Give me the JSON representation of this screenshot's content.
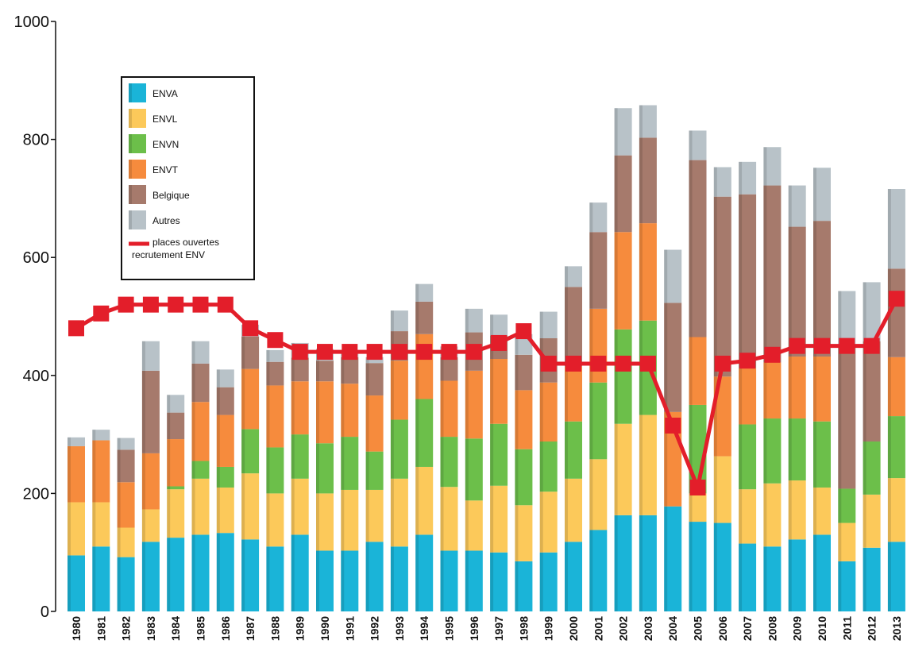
{
  "colors": {
    "ENVA": "#1ab4d8",
    "ENVL": "#fcc95a",
    "ENVN": "#6cbf4a",
    "ENVT": "#f68b3d",
    "Belgique": "#a67a6c",
    "Autres": "#b8c2c8",
    "line": "#e31e2a"
  },
  "chart_data": {
    "type": "bar",
    "stacked": true,
    "title": "",
    "xlabel": "",
    "ylabel": "",
    "ylim": [
      0,
      1000
    ],
    "yticks": [
      0,
      200,
      400,
      600,
      800,
      1000
    ],
    "grid": false,
    "legend_position": "top-left",
    "categories": [
      "1980",
      "1981",
      "1982",
      "1983",
      "1984",
      "1985",
      "1986",
      "1987",
      "1988",
      "1989",
      "1990",
      "1991",
      "1992",
      "1993",
      "1994",
      "1995",
      "1996",
      "1997",
      "1998",
      "1999",
      "2000",
      "2001",
      "2002",
      "2003",
      "2004",
      "2005",
      "2006",
      "2007",
      "2008",
      "2009",
      "2010",
      "2011",
      "2012",
      "2013"
    ],
    "series": [
      {
        "name": "ENVA",
        "values": [
          95,
          110,
          92,
          118,
          125,
          130,
          133,
          122,
          110,
          130,
          103,
          103,
          118,
          110,
          130,
          103,
          103,
          100,
          85,
          100,
          118,
          138,
          163,
          163,
          178,
          152,
          150,
          115,
          110,
          122,
          130,
          85,
          108,
          118
        ]
      },
      {
        "name": "ENVL",
        "values": [
          90,
          75,
          50,
          55,
          82,
          95,
          77,
          112,
          90,
          95,
          97,
          103,
          88,
          115,
          115,
          108,
          85,
          113,
          95,
          103,
          107,
          120,
          155,
          170,
          0,
          48,
          113,
          92,
          107,
          100,
          80,
          65,
          90,
          108
        ]
      },
      {
        "name": "ENVN",
        "values": [
          0,
          0,
          0,
          0,
          5,
          30,
          35,
          75,
          78,
          75,
          85,
          90,
          65,
          100,
          115,
          85,
          105,
          105,
          95,
          85,
          97,
          130,
          160,
          160,
          0,
          150,
          0,
          110,
          110,
          105,
          112,
          58,
          90,
          105
        ]
      },
      {
        "name": "ENVT",
        "values": [
          95,
          105,
          77,
          95,
          80,
          100,
          88,
          102,
          105,
          90,
          105,
          90,
          95,
          100,
          110,
          95,
          115,
          110,
          100,
          100,
          93,
          125,
          165,
          165,
          160,
          115,
          135,
          95,
          95,
          105,
          110,
          0,
          0,
          100
        ]
      },
      {
        "name": "Belgique",
        "values": [
          0,
          0,
          55,
          140,
          45,
          65,
          47,
          55,
          40,
          40,
          35,
          45,
          55,
          50,
          55,
          40,
          65,
          40,
          60,
          75,
          135,
          130,
          130,
          145,
          185,
          300,
          305,
          295,
          300,
          220,
          230,
          240,
          170,
          150
        ]
      },
      {
        "name": "Autres",
        "values": [
          15,
          18,
          20,
          50,
          30,
          38,
          30,
          20,
          20,
          25,
          20,
          10,
          10,
          35,
          30,
          18,
          40,
          35,
          35,
          45,
          35,
          50,
          80,
          55,
          90,
          50,
          50,
          55,
          65,
          70,
          90,
          95,
          100,
          135
        ]
      }
    ],
    "line_series": {
      "name": "places ouvertes recrutement ENV",
      "values": [
        480,
        505,
        520,
        520,
        520,
        520,
        520,
        480,
        460,
        440,
        440,
        440,
        440,
        440,
        440,
        440,
        440,
        455,
        475,
        420,
        420,
        420,
        420,
        420,
        315,
        210,
        420,
        425,
        435,
        450,
        450,
        450,
        450,
        530
      ]
    }
  },
  "legend": {
    "items": [
      {
        "key": "ENVA",
        "label": "ENVA"
      },
      {
        "key": "ENVL",
        "label": "ENVL"
      },
      {
        "key": "ENVN",
        "label": "ENVN"
      },
      {
        "key": "ENVT",
        "label": "ENVT"
      },
      {
        "key": "Belgique",
        "label": "Belgique"
      },
      {
        "key": "Autres",
        "label": "Autres"
      }
    ],
    "line_label_1": "places ouvertes",
    "line_label_2": "recrutement ENV"
  }
}
